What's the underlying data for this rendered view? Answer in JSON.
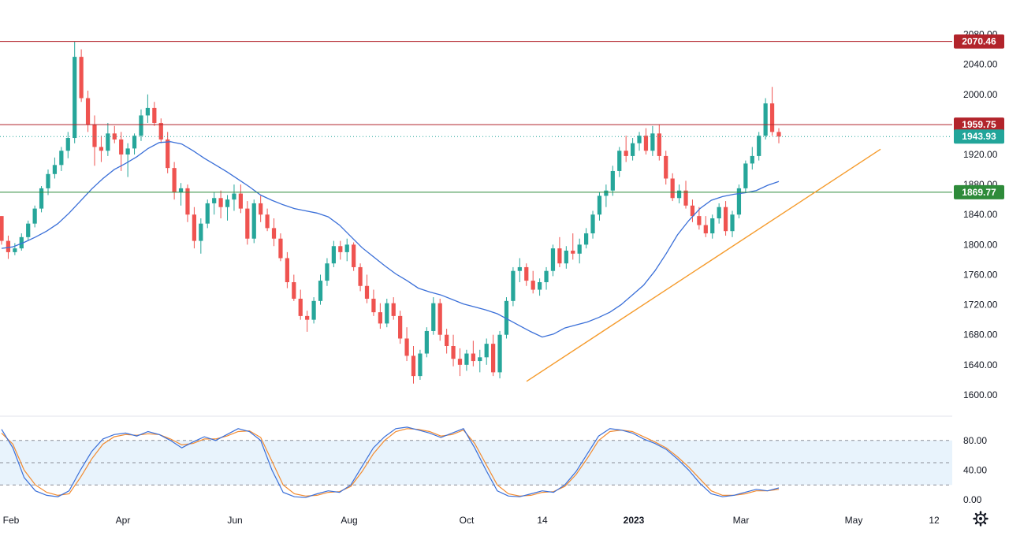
{
  "chart_data": {
    "type": "candlestick",
    "title": "",
    "xlabel": "",
    "ylabel": "",
    "price_axis": {
      "ylim": [
        1580,
        2090
      ],
      "ticks": [
        "2080.00",
        "2040.00",
        "2000.00",
        "1960.00",
        "1920.00",
        "1880.00",
        "1840.00",
        "1800.00",
        "1760.00",
        "1720.00",
        "1680.00",
        "1640.00",
        "1600.00"
      ]
    },
    "time_axis": {
      "labels": [
        "Feb",
        "Apr",
        "Jun",
        "Aug",
        "Oct",
        "14",
        "2023",
        "Mar",
        "May",
        "12"
      ],
      "bold": [
        "2023"
      ]
    },
    "levels": [
      {
        "name": "resistance-2070",
        "label": "2070.46",
        "value": 2070.46,
        "color": "#b2242b",
        "style": "solid"
      },
      {
        "name": "resistance-1959",
        "label": "1959.75",
        "value": 1959.75,
        "color": "#b2242b",
        "style": "solid"
      },
      {
        "name": "last-price",
        "label": "1943.93",
        "value": 1943.93,
        "color": "#22a59a",
        "style": "dotted"
      },
      {
        "name": "support-1869",
        "label": "1869.77",
        "value": 1869.77,
        "color": "#2e8b3a",
        "style": "solid"
      }
    ],
    "trendline": {
      "color": "#f59b2c",
      "from": {
        "bar": 0.0,
        "value": 1618
      },
      "to": {
        "bar": 1.0,
        "value": 1927
      }
    },
    "moving_average": {
      "color": "#3a6fd8",
      "values": [
        1795,
        1797,
        1803,
        1810,
        1818,
        1828,
        1842,
        1858,
        1874,
        1888,
        1900,
        1908,
        1917,
        1928,
        1936,
        1937,
        1934,
        1925,
        1915,
        1906,
        1897,
        1887,
        1877,
        1866,
        1859,
        1853,
        1848,
        1845,
        1842,
        1837,
        1826,
        1811,
        1796,
        1784,
        1772,
        1761,
        1752,
        1742,
        1737,
        1733,
        1727,
        1721,
        1717,
        1713,
        1708,
        1700,
        1692,
        1684,
        1677,
        1681,
        1689,
        1693,
        1697,
        1703,
        1710,
        1720,
        1733,
        1746,
        1765,
        1788,
        1813,
        1832,
        1848,
        1859,
        1864,
        1867,
        1869,
        1872,
        1879,
        1884
      ]
    },
    "candles_ohlc": [
      [
        1838,
        1838,
        1800,
        1805
      ],
      [
        1805,
        1812,
        1781,
        1790
      ],
      [
        1790,
        1802,
        1786,
        1795
      ],
      [
        1795,
        1815,
        1792,
        1810
      ],
      [
        1810,
        1832,
        1806,
        1828
      ],
      [
        1828,
        1852,
        1823,
        1848
      ],
      [
        1848,
        1878,
        1843,
        1875
      ],
      [
        1875,
        1900,
        1866,
        1894
      ],
      [
        1894,
        1916,
        1888,
        1906
      ],
      [
        1906,
        1930,
        1898,
        1925
      ],
      [
        1925,
        1950,
        1915,
        1942
      ],
      [
        1942,
        2070,
        1935,
        2050
      ],
      [
        2050,
        2060,
        1990,
        1995
      ],
      [
        1995,
        2005,
        1950,
        1960
      ],
      [
        1960,
        1972,
        1905,
        1930
      ],
      [
        1930,
        1945,
        1910,
        1925
      ],
      [
        1925,
        1962,
        1918,
        1948
      ],
      [
        1948,
        1958,
        1935,
        1940
      ],
      [
        1940,
        1950,
        1898,
        1920
      ],
      [
        1920,
        1935,
        1890,
        1928
      ],
      [
        1928,
        1948,
        1920,
        1945
      ],
      [
        1945,
        1980,
        1938,
        1972
      ],
      [
        1972,
        2000,
        1962,
        1982
      ],
      [
        1982,
        1990,
        1958,
        1962
      ],
      [
        1962,
        1968,
        1935,
        1940
      ],
      [
        1940,
        1950,
        1895,
        1902
      ],
      [
        1902,
        1910,
        1860,
        1870
      ],
      [
        1870,
        1882,
        1852,
        1875
      ],
      [
        1875,
        1880,
        1830,
        1840
      ],
      [
        1840,
        1850,
        1795,
        1805
      ],
      [
        1805,
        1835,
        1788,
        1828
      ],
      [
        1828,
        1860,
        1822,
        1855
      ],
      [
        1855,
        1870,
        1840,
        1862
      ],
      [
        1862,
        1872,
        1835,
        1850
      ],
      [
        1850,
        1866,
        1832,
        1860
      ],
      [
        1860,
        1880,
        1845,
        1868
      ],
      [
        1868,
        1880,
        1842,
        1848
      ],
      [
        1848,
        1858,
        1800,
        1808
      ],
      [
        1808,
        1860,
        1802,
        1855
      ],
      [
        1855,
        1865,
        1830,
        1840
      ],
      [
        1840,
        1848,
        1818,
        1822
      ],
      [
        1822,
        1835,
        1798,
        1808
      ],
      [
        1808,
        1815,
        1778,
        1782
      ],
      [
        1782,
        1790,
        1742,
        1750
      ],
      [
        1750,
        1760,
        1725,
        1728
      ],
      [
        1728,
        1740,
        1700,
        1705
      ],
      [
        1705,
        1712,
        1684,
        1700
      ],
      [
        1700,
        1730,
        1695,
        1725
      ],
      [
        1725,
        1760,
        1720,
        1752
      ],
      [
        1752,
        1782,
        1745,
        1775
      ],
      [
        1775,
        1805,
        1770,
        1798
      ],
      [
        1798,
        1805,
        1780,
        1790
      ],
      [
        1790,
        1808,
        1778,
        1800
      ],
      [
        1800,
        1803,
        1765,
        1770
      ],
      [
        1770,
        1775,
        1738,
        1745
      ],
      [
        1745,
        1760,
        1722,
        1728
      ],
      [
        1728,
        1740,
        1705,
        1710
      ],
      [
        1710,
        1722,
        1688,
        1695
      ],
      [
        1695,
        1728,
        1690,
        1722
      ],
      [
        1722,
        1730,
        1700,
        1705
      ],
      [
        1705,
        1712,
        1668,
        1675
      ],
      [
        1675,
        1690,
        1645,
        1652
      ],
      [
        1652,
        1665,
        1615,
        1625
      ],
      [
        1625,
        1660,
        1620,
        1655
      ],
      [
        1655,
        1690,
        1650,
        1685
      ],
      [
        1685,
        1730,
        1680,
        1722
      ],
      [
        1722,
        1728,
        1672,
        1680
      ],
      [
        1680,
        1688,
        1655,
        1665
      ],
      [
        1665,
        1680,
        1638,
        1648
      ],
      [
        1648,
        1662,
        1625,
        1640
      ],
      [
        1640,
        1660,
        1632,
        1655
      ],
      [
        1655,
        1672,
        1638,
        1645
      ],
      [
        1645,
        1660,
        1630,
        1650
      ],
      [
        1650,
        1675,
        1640,
        1668
      ],
      [
        1668,
        1680,
        1625,
        1630
      ],
      [
        1630,
        1685,
        1622,
        1680
      ],
      [
        1680,
        1730,
        1675,
        1725
      ],
      [
        1725,
        1770,
        1718,
        1765
      ],
      [
        1765,
        1782,
        1750,
        1770
      ],
      [
        1770,
        1775,
        1745,
        1752
      ],
      [
        1752,
        1765,
        1735,
        1740
      ],
      [
        1740,
        1755,
        1732,
        1750
      ],
      [
        1750,
        1770,
        1740,
        1765
      ],
      [
        1765,
        1800,
        1758,
        1795
      ],
      [
        1795,
        1810,
        1770,
        1775
      ],
      [
        1775,
        1798,
        1768,
        1792
      ],
      [
        1792,
        1815,
        1780,
        1788
      ],
      [
        1788,
        1808,
        1775,
        1800
      ],
      [
        1800,
        1822,
        1795,
        1815
      ],
      [
        1815,
        1845,
        1808,
        1840
      ],
      [
        1840,
        1870,
        1832,
        1865
      ],
      [
        1865,
        1880,
        1850,
        1872
      ],
      [
        1872,
        1905,
        1865,
        1898
      ],
      [
        1898,
        1930,
        1890,
        1925
      ],
      [
        1925,
        1945,
        1910,
        1918
      ],
      [
        1918,
        1942,
        1912,
        1935
      ],
      [
        1935,
        1950,
        1925,
        1945
      ],
      [
        1945,
        1955,
        1920,
        1925
      ],
      [
        1925,
        1958,
        1918,
        1948
      ],
      [
        1948,
        1960,
        1912,
        1918
      ],
      [
        1918,
        1925,
        1880,
        1888
      ],
      [
        1888,
        1895,
        1858,
        1862
      ],
      [
        1862,
        1880,
        1855,
        1872
      ],
      [
        1872,
        1885,
        1848,
        1852
      ],
      [
        1852,
        1860,
        1830,
        1838
      ],
      [
        1838,
        1850,
        1820,
        1826
      ],
      [
        1826,
        1838,
        1810,
        1815
      ],
      [
        1815,
        1840,
        1808,
        1835
      ],
      [
        1835,
        1855,
        1828,
        1850
      ],
      [
        1850,
        1858,
        1812,
        1818
      ],
      [
        1818,
        1845,
        1810,
        1840
      ],
      [
        1840,
        1880,
        1835,
        1875
      ],
      [
        1875,
        1912,
        1870,
        1908
      ],
      [
        1908,
        1930,
        1900,
        1918
      ],
      [
        1918,
        1950,
        1912,
        1945
      ],
      [
        1945,
        1995,
        1940,
        1988
      ],
      [
        1988,
        2010,
        1945,
        1950
      ],
      [
        1950,
        1955,
        1935,
        1943.93
      ]
    ],
    "oscillator": {
      "type": "stochastic",
      "ylim": [
        0,
        100
      ],
      "ticks": [
        "80.00",
        "40.00",
        "0.00"
      ],
      "tick_values": [
        80,
        40,
        0
      ],
      "band": [
        20,
        80
      ],
      "band_color": "#e8f3fc",
      "k_color": "#3a6fd8",
      "d_color": "#f28b30",
      "k_values": [
        95,
        70,
        30,
        12,
        6,
        4,
        12,
        40,
        65,
        82,
        88,
        90,
        86,
        92,
        88,
        80,
        70,
        78,
        85,
        80,
        88,
        96,
        92,
        80,
        40,
        10,
        4,
        3,
        8,
        12,
        10,
        20,
        45,
        70,
        85,
        96,
        98,
        94,
        90,
        84,
        90,
        96,
        70,
        40,
        12,
        5,
        4,
        8,
        12,
        10,
        20,
        38,
        62,
        86,
        96,
        94,
        90,
        82,
        76,
        68,
        55,
        40,
        22,
        8,
        4,
        6,
        10,
        14,
        12,
        16
      ],
      "d_values": [
        90,
        75,
        40,
        20,
        10,
        6,
        8,
        30,
        55,
        75,
        85,
        88,
        87,
        89,
        88,
        82,
        74,
        76,
        82,
        82,
        86,
        92,
        93,
        84,
        52,
        20,
        8,
        5,
        6,
        10,
        11,
        18,
        38,
        62,
        80,
        92,
        96,
        95,
        92,
        86,
        88,
        94,
        76,
        48,
        20,
        8,
        5,
        6,
        10,
        11,
        18,
        34,
        56,
        80,
        92,
        94,
        92,
        85,
        78,
        70,
        58,
        44,
        28,
        12,
        6,
        6,
        8,
        12,
        12,
        14
      ]
    }
  }
}
